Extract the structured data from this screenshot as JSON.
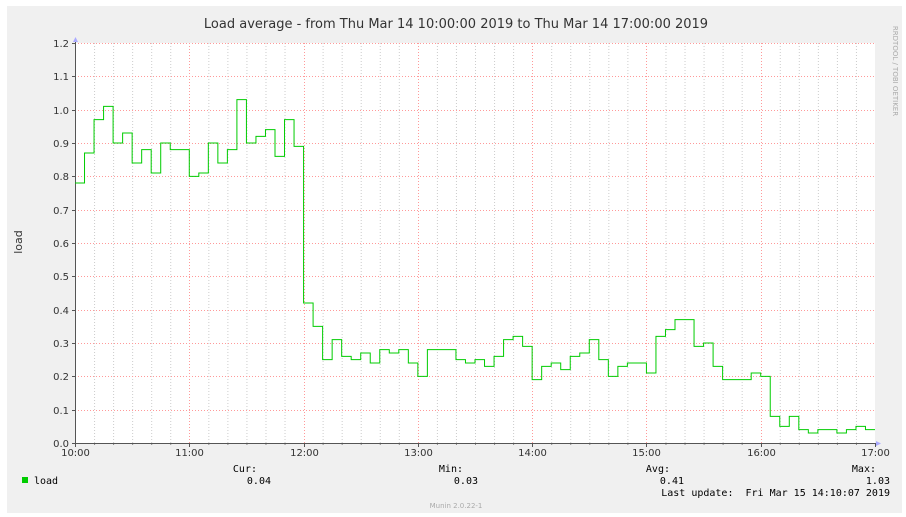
{
  "chart_data": {
    "type": "line",
    "title": "Load average - from Thu Mar 14 10:00:00 2019 to Thu Mar 14 17:00:00 2019",
    "ylabel": "load",
    "watermark": "RRDTOOL / TOBI OETIKER",
    "x_ticks": [
      "10:00",
      "11:00",
      "12:00",
      "13:00",
      "14:00",
      "15:00",
      "16:00",
      "17:00"
    ],
    "y_ticks": [
      "0.0",
      "0.1",
      "0.2",
      "0.3",
      "0.4",
      "0.5",
      "0.6",
      "0.7",
      "0.8",
      "0.9",
      "1.0",
      "1.1",
      "1.2"
    ],
    "xlim_minutes": [
      0,
      420
    ],
    "ylim": [
      0,
      1.2
    ],
    "grid": true,
    "series_color": "#00cc00",
    "series": [
      {
        "name": "load",
        "step_minutes": 5,
        "values": [
          0.78,
          0.87,
          0.97,
          1.01,
          0.9,
          0.93,
          0.84,
          0.88,
          0.81,
          0.9,
          0.88,
          0.88,
          0.8,
          0.81,
          0.9,
          0.84,
          0.88,
          1.03,
          0.9,
          0.92,
          0.94,
          0.86,
          0.97,
          0.89,
          0.42,
          0.35,
          0.25,
          0.31,
          0.26,
          0.25,
          0.27,
          0.24,
          0.28,
          0.27,
          0.28,
          0.24,
          0.2,
          0.28,
          0.28,
          0.28,
          0.25,
          0.24,
          0.25,
          0.23,
          0.26,
          0.31,
          0.32,
          0.29,
          0.19,
          0.23,
          0.24,
          0.22,
          0.26,
          0.27,
          0.31,
          0.25,
          0.2,
          0.23,
          0.24,
          0.24,
          0.21,
          0.32,
          0.34,
          0.37,
          0.37,
          0.29,
          0.3,
          0.23,
          0.19,
          0.19,
          0.19,
          0.21,
          0.2,
          0.08,
          0.05,
          0.08,
          0.04,
          0.03,
          0.04,
          0.04,
          0.03,
          0.04,
          0.05,
          0.04
        ]
      }
    ]
  },
  "legend": {
    "label": "load",
    "headers": {
      "cur": "Cur:",
      "min": "Min:",
      "avg": "Avg:",
      "max": "Max:"
    },
    "values": {
      "cur": "0.04",
      "min": "0.03",
      "avg": "0.41",
      "max": "1.03"
    },
    "last_update": "Last update:  Fri Mar 15 14:10:07 2019"
  },
  "footer": {
    "version": "Munin 2.0.22-1"
  }
}
